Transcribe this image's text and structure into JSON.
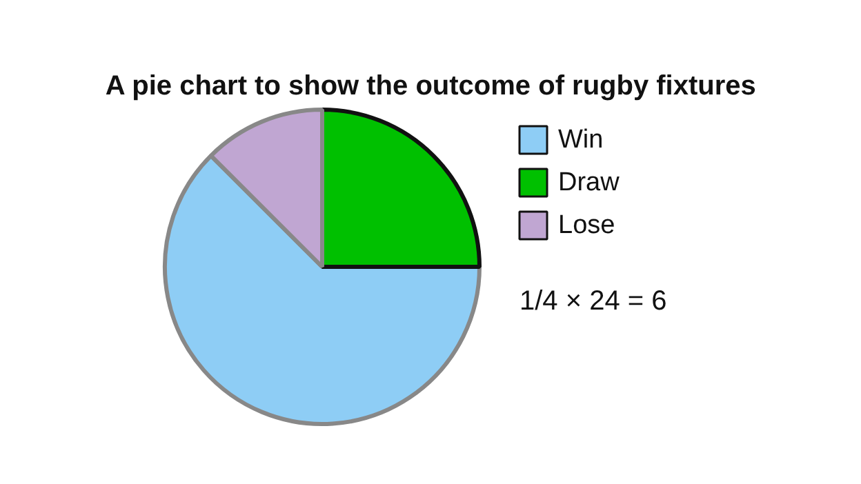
{
  "chart_data": {
    "type": "pie",
    "title": "A pie chart to show the outcome of rugby fixtures",
    "categories": [
      "Win",
      "Draw",
      "Lose"
    ],
    "values": [
      62.5,
      25,
      12.5
    ],
    "colors": [
      "#8ecdf5",
      "#00c000",
      "#c0a6d2"
    ],
    "legend": "right",
    "annotations": [
      "1/4 × 24 = 6"
    ]
  }
}
